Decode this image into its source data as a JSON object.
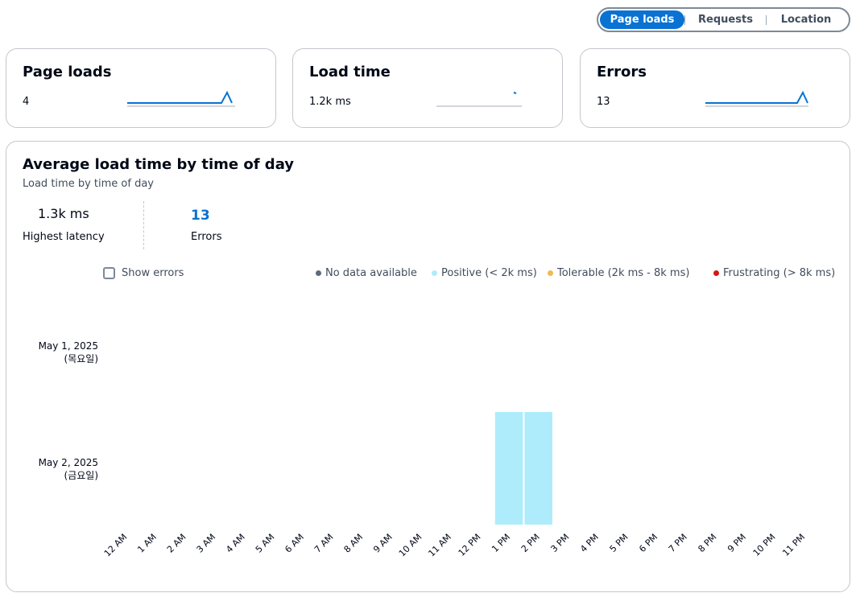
{
  "tabs": [
    {
      "label": "Page loads",
      "active": true
    },
    {
      "label": "Requests",
      "active": false
    },
    {
      "label": "Location",
      "active": false
    }
  ],
  "cards": [
    {
      "title": "Page loads",
      "value": "4"
    },
    {
      "title": "Load time",
      "value": "1.2k ms"
    },
    {
      "title": "Errors",
      "value": "13"
    }
  ],
  "main": {
    "title": "Average load time by time of day",
    "subtitle": "Load time by time of day",
    "highest_latency": {
      "value": "1.3k ms",
      "label": "Highest latency"
    },
    "errors": {
      "value": "13",
      "label": "Errors"
    },
    "show_errors_label": "Show errors"
  },
  "colors": {
    "accent": "#0972d3",
    "no_data": "#5f6b7a",
    "positive": "#aeecfc",
    "tolerable": "#f2b94e",
    "frustrating": "#d91515"
  },
  "chart_data": {
    "type": "heatmap",
    "title": "Average load time by time of day",
    "legend": [
      {
        "label": "No data available",
        "color": "#5f6b7a"
      },
      {
        "label": "Positive (< 2k ms)",
        "color": "#aeecfc"
      },
      {
        "label": "Tolerable (2k ms - 8k ms)",
        "color": "#f2b94e"
      },
      {
        "label": "Frustrating (> 8k ms)",
        "color": "#d91515"
      }
    ],
    "legend_placement": "top-right",
    "rows": [
      {
        "date": "May 1, 2025",
        "day": "(목요일)"
      },
      {
        "date": "May 2, 2025",
        "day": "(금요일)"
      }
    ],
    "columns": [
      "12 AM",
      "1 AM",
      "2 AM",
      "3 AM",
      "4 AM",
      "5 AM",
      "6 AM",
      "7 AM",
      "8 AM",
      "9 AM",
      "10 AM",
      "11 AM",
      "12 PM",
      "1 PM",
      "2 PM",
      "3 PM",
      "4 PM",
      "5 PM",
      "6 PM",
      "7 PM",
      "8 PM",
      "9 PM",
      "10 PM",
      "11 PM"
    ],
    "cells": [
      {
        "row": "May 2, 2025",
        "column": "1 PM",
        "category": "Positive"
      },
      {
        "row": "May 2, 2025",
        "column": "2 PM",
        "category": "Positive"
      }
    ]
  }
}
